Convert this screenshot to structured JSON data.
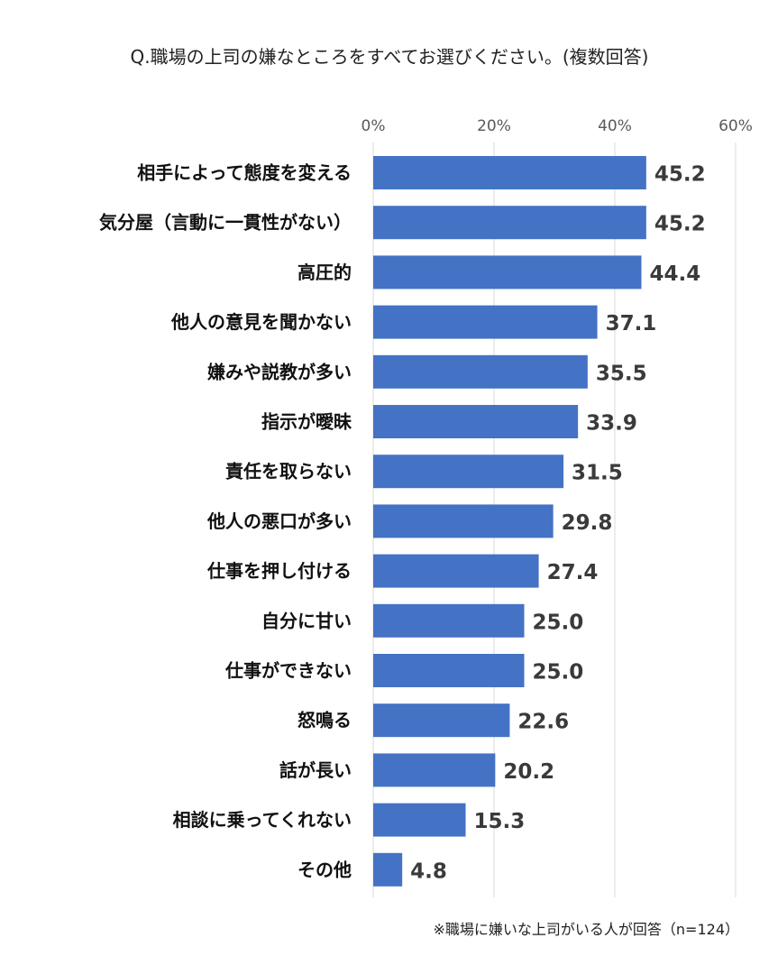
{
  "chart_data": {
    "type": "bar",
    "orientation": "horizontal",
    "title": "Q.職場の上司の嫌なところをすべてお選びください。(複数回答)",
    "categories": [
      "相手によって態度を変える",
      "気分屋（言動に一貫性がない）",
      "高圧的",
      "他人の意見を聞かない",
      "嫌みや説教が多い",
      "指示が曖昧",
      "責任を取らない",
      "他人の悪口が多い",
      "仕事を押し付ける",
      "自分に甘い",
      "仕事ができない",
      "怒鳴る",
      "話が長い",
      "相談に乗ってくれない",
      "その他"
    ],
    "values": [
      45.2,
      45.2,
      44.4,
      37.1,
      35.5,
      33.9,
      31.5,
      29.8,
      27.4,
      25.0,
      25.0,
      22.6,
      20.2,
      15.3,
      4.8
    ],
    "value_labels": [
      "45.2",
      "45.2",
      "44.4",
      "37.1",
      "35.5",
      "33.9",
      "31.5",
      "29.8",
      "27.4",
      "25.0",
      "25.0",
      "22.6",
      "20.2",
      "15.3",
      "4.8"
    ],
    "xlim": [
      0,
      60
    ],
    "xticks": [
      0,
      20,
      40,
      60
    ],
    "xtick_labels": [
      "0%",
      "20%",
      "40%",
      "60%"
    ],
    "axis_position": "top",
    "grid": true,
    "bar_color": "#4472C4",
    "footnote": "※職場に嫌いな上司がいる人が回答（n=124）"
  }
}
